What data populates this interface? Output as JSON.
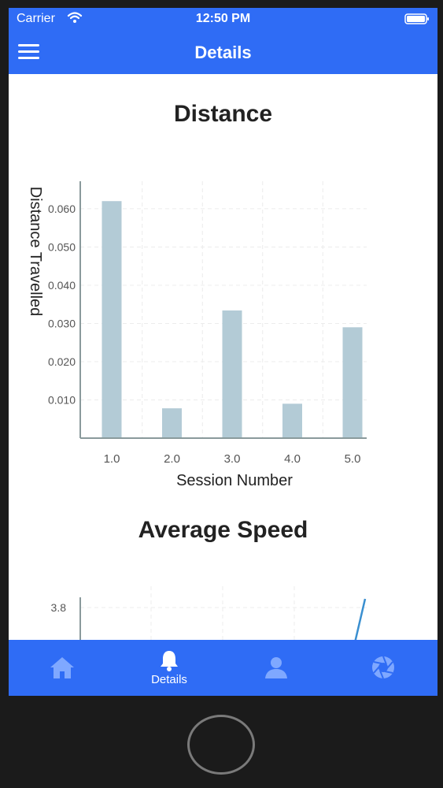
{
  "status": {
    "carrier": "Carrier",
    "time": "12:50 PM"
  },
  "nav": {
    "title": "Details",
    "menu_icon": "hamburger-menu-icon"
  },
  "charts": {
    "distance_title": "Distance",
    "speed_title": "Average Speed"
  },
  "chart_data": [
    {
      "type": "bar",
      "title": "Distance",
      "xlabel": "Session Number",
      "ylabel": "Distance Travelled",
      "categories": [
        "1.0",
        "2.0",
        "3.0",
        "4.0",
        "5.0"
      ],
      "values": [
        0.062,
        0.0078,
        0.0334,
        0.009,
        0.029
      ],
      "ylim": [
        0,
        0.0672
      ],
      "yticks": [
        "0.010",
        "0.020",
        "0.030",
        "0.040",
        "0.050",
        "0.060"
      ],
      "ytick_values": [
        0.01,
        0.02,
        0.03,
        0.04,
        0.05,
        0.06
      ],
      "grid": true,
      "bar_color": "#b3cbd6"
    },
    {
      "type": "line",
      "title": "Average Speed",
      "yticks": [
        "3.8"
      ],
      "ytick_values": [
        3.8
      ],
      "grid": true,
      "line_color": "#3a8fd0"
    }
  ],
  "tabs": [
    {
      "icon": "home-icon",
      "label": ""
    },
    {
      "icon": "bell-icon",
      "label": "Details"
    },
    {
      "icon": "user-icon",
      "label": ""
    },
    {
      "icon": "aperture-icon",
      "label": ""
    }
  ],
  "colors": {
    "accent": "#2f6cf5",
    "tab_icon": "#7fa8ff"
  }
}
